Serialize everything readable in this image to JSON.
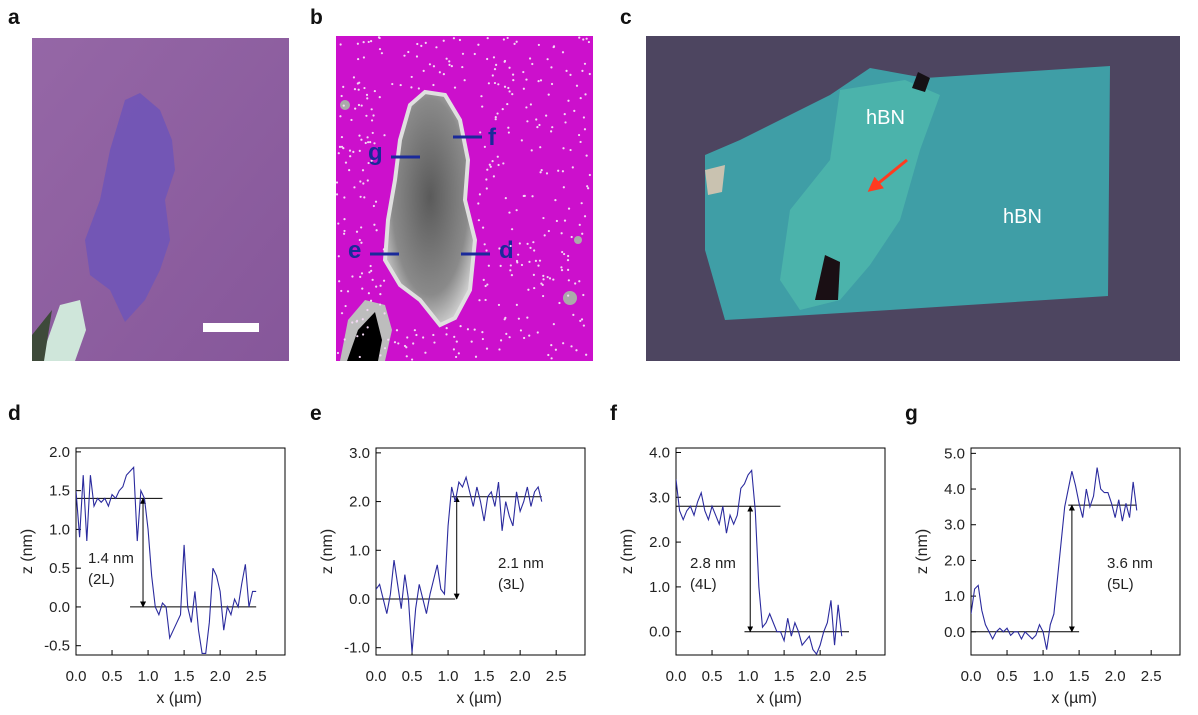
{
  "panel_labels": [
    "a",
    "b",
    "c"
  ],
  "image_b_labels": [
    "g",
    "f",
    "e",
    "d"
  ],
  "image_c_labels": [
    "hBN",
    "hBN"
  ],
  "chart_data": [
    {
      "type": "line",
      "title": "d",
      "xlabel": "x (µm)",
      "ylabel": "z (nm)",
      "color": "#2b2b9e",
      "xlim": [
        0,
        2.9
      ],
      "ylim": [
        -0.62,
        2.05
      ],
      "xticks": [
        {
          "value": 0,
          "label": "0.0"
        },
        0.5,
        {
          "value": 1,
          "label": "1.0"
        },
        1.5,
        {
          "value": 2,
          "label": "2.0"
        },
        2.5
      ],
      "yticks": [
        -0.5,
        {
          "value": 0,
          "label": "0.0"
        },
        0.5,
        {
          "value": 1,
          "label": "1.0"
        },
        1.5,
        {
          "value": 2,
          "label": "2.0"
        }
      ],
      "x": [
        0,
        0.05,
        0.1,
        0.15,
        0.2,
        0.25,
        0.3,
        0.35,
        0.4,
        0.45,
        0.5,
        0.55,
        0.6,
        0.65,
        0.7,
        0.75,
        0.8,
        0.85,
        0.9,
        0.95,
        1,
        1.05,
        1.1,
        1.15,
        1.2,
        1.25,
        1.3,
        1.35,
        1.4,
        1.45,
        1.5,
        1.55,
        1.6,
        1.65,
        1.7,
        1.75,
        1.8,
        1.85,
        1.9,
        1.95,
        2,
        2.05,
        2.1,
        2.15,
        2.2,
        2.25,
        2.3,
        2.35,
        2.4,
        2.45,
        2.5
      ],
      "values": [
        1.5,
        0.9,
        1.7,
        0.85,
        1.7,
        1.3,
        1.4,
        1.35,
        1.4,
        1.3,
        1.45,
        1.4,
        1.5,
        1.55,
        1.7,
        1.75,
        1.8,
        0.85,
        1.5,
        1.4,
        1.0,
        0.4,
        0,
        -0.1,
        0.05,
        0,
        -0.4,
        -0.3,
        -0.2,
        -0.1,
        0.8,
        0,
        -0.2,
        0.2,
        -0.3,
        -0.6,
        -0.6,
        -0.2,
        0.5,
        0.4,
        0.2,
        -0.3,
        0,
        -0.1,
        0.1,
        0,
        0.3,
        0.55,
        0,
        0.2,
        0.2
      ],
      "reference_lines": [
        {
          "y": 1.4,
          "x": [
            0,
            1.2
          ]
        },
        {
          "y": 0,
          "x": [
            0.75,
            2.5
          ]
        }
      ],
      "arrow": {
        "x": 0.93,
        "y": [
          0,
          1.4
        ]
      },
      "annotation": [
        "1.4 nm",
        "(2L)"
      ]
    },
    {
      "type": "line",
      "title": "e",
      "xlabel": "x (µm)",
      "ylabel": "z (nm)",
      "color": "#2b2b9e",
      "xlim": [
        0,
        2.9
      ],
      "ylim": [
        -1.15,
        3.1
      ],
      "xticks": [
        {
          "value": 0,
          "label": "0.0"
        },
        0.5,
        {
          "value": 1,
          "label": "1.0"
        },
        1.5,
        {
          "value": 2,
          "label": "2.0"
        },
        2.5
      ],
      "yticks": [
        {
          "value": -1,
          "label": "-1.0"
        },
        {
          "value": 0,
          "label": "0.0"
        },
        {
          "value": 1,
          "label": "1.0"
        },
        {
          "value": 2,
          "label": "2.0"
        },
        {
          "value": 3,
          "label": "3.0"
        }
      ],
      "x": [
        0,
        0.05,
        0.1,
        0.15,
        0.2,
        0.25,
        0.3,
        0.35,
        0.4,
        0.45,
        0.5,
        0.55,
        0.6,
        0.65,
        0.7,
        0.75,
        0.8,
        0.85,
        0.9,
        0.95,
        1,
        1.05,
        1.1,
        1.15,
        1.2,
        1.25,
        1.3,
        1.35,
        1.4,
        1.45,
        1.5,
        1.55,
        1.6,
        1.65,
        1.7,
        1.75,
        1.8,
        1.85,
        1.9,
        1.95,
        2,
        2.05,
        2.1,
        2.15,
        2.2,
        2.25,
        2.3
      ],
      "values": [
        0.2,
        0.3,
        0,
        -0.3,
        0.1,
        0.8,
        0.3,
        -0.2,
        0.5,
        0,
        -1.1,
        -0.2,
        0.3,
        0,
        -0.3,
        0.1,
        0.4,
        0.7,
        0.2,
        0.1,
        1.5,
        2.3,
        2.0,
        2.4,
        2.3,
        2.5,
        2.2,
        1.9,
        2.3,
        2.0,
        1.6,
        2.1,
        2.2,
        1.9,
        2.4,
        1.4,
        2.0,
        1.7,
        1.5,
        2.2,
        1.8,
        2.0,
        2.3,
        1.9,
        2.2,
        2.3,
        2.0
      ],
      "reference_lines": [
        {
          "y": 0,
          "x": [
            0,
            1.1
          ]
        },
        {
          "y": 2.1,
          "x": [
            1.05,
            2.3
          ]
        }
      ],
      "arrow": {
        "x": 1.12,
        "y": [
          0,
          2.1
        ]
      },
      "annotation": [
        "2.1 nm",
        "(3L)"
      ]
    },
    {
      "type": "line",
      "title": "f",
      "xlabel": "x (µm)",
      "ylabel": "z (nm)",
      "color": "#2b2b9e",
      "xlim": [
        0,
        2.9
      ],
      "ylim": [
        -0.52,
        4.1
      ],
      "xticks": [
        {
          "value": 0,
          "label": "0.0"
        },
        0.5,
        {
          "value": 1,
          "label": "1.0"
        },
        1.5,
        {
          "value": 2,
          "label": "2.0"
        },
        2.5
      ],
      "yticks": [
        {
          "value": 0,
          "label": "0.0"
        },
        {
          "value": 1,
          "label": "1.0"
        },
        {
          "value": 2,
          "label": "2.0"
        },
        {
          "value": 3,
          "label": "3.0"
        },
        {
          "value": 4,
          "label": "4.0"
        }
      ],
      "x": [
        0,
        0.05,
        0.1,
        0.15,
        0.2,
        0.25,
        0.3,
        0.35,
        0.4,
        0.45,
        0.5,
        0.55,
        0.6,
        0.65,
        0.7,
        0.75,
        0.8,
        0.85,
        0.9,
        0.95,
        1,
        1.05,
        1.1,
        1.15,
        1.2,
        1.25,
        1.3,
        1.35,
        1.4,
        1.45,
        1.5,
        1.55,
        1.6,
        1.65,
        1.7,
        1.75,
        1.8,
        1.85,
        1.9,
        1.95,
        2,
        2.05,
        2.1,
        2.15,
        2.2,
        2.25,
        2.3
      ],
      "values": [
        3.4,
        2.7,
        2.5,
        2.7,
        2.8,
        2.6,
        2.9,
        3.1,
        2.7,
        2.5,
        2.8,
        2.6,
        2.4,
        2.8,
        2.2,
        2.6,
        2.4,
        2.6,
        3.2,
        3.3,
        3.5,
        3.6,
        2.7,
        1.0,
        0.1,
        0.2,
        0.4,
        0.2,
        0,
        0,
        -0.2,
        0.3,
        -0.1,
        0.2,
        0,
        -0.3,
        -0.2,
        -0.1,
        -0.4,
        -0.5,
        -0.3,
        0,
        0.2,
        0.7,
        -0.3,
        0.6,
        -0.1
      ],
      "reference_lines": [
        {
          "y": 2.8,
          "x": [
            0,
            1.45
          ]
        },
        {
          "y": 0,
          "x": [
            0.95,
            2.4
          ]
        }
      ],
      "arrow": {
        "x": 1.03,
        "y": [
          0,
          2.8
        ]
      },
      "annotation": [
        "2.8 nm",
        "(4L)"
      ]
    },
    {
      "type": "line",
      "title": "g",
      "xlabel": "x (µm)",
      "ylabel": "z (nm)",
      "color": "#2b2b9e",
      "xlim": [
        0,
        2.9
      ],
      "ylim": [
        -0.65,
        5.15
      ],
      "xticks": [
        {
          "value": 0,
          "label": "0.0"
        },
        0.5,
        {
          "value": 1,
          "label": "1.0"
        },
        1.5,
        {
          "value": 2,
          "label": "2.0"
        },
        2.5
      ],
      "yticks": [
        {
          "value": 0,
          "label": "0.0"
        },
        {
          "value": 1,
          "label": "1.0"
        },
        {
          "value": 2,
          "label": "2.0"
        },
        {
          "value": 3,
          "label": "3.0"
        },
        {
          "value": 4,
          "label": "4.0"
        },
        {
          "value": 5,
          "label": "5.0"
        }
      ],
      "x": [
        0,
        0.05,
        0.1,
        0.15,
        0.2,
        0.25,
        0.3,
        0.35,
        0.4,
        0.45,
        0.5,
        0.55,
        0.6,
        0.65,
        0.7,
        0.75,
        0.8,
        0.85,
        0.9,
        0.95,
        1,
        1.05,
        1.1,
        1.15,
        1.2,
        1.25,
        1.3,
        1.35,
        1.4,
        1.45,
        1.5,
        1.55,
        1.6,
        1.65,
        1.7,
        1.75,
        1.8,
        1.85,
        1.9,
        1.95,
        2,
        2.05,
        2.1,
        2.15,
        2.2,
        2.25,
        2.3
      ],
      "values": [
        0.5,
        1.2,
        1.3,
        0.6,
        0.2,
        0,
        -0.2,
        0,
        0.1,
        0,
        0.1,
        -0.1,
        0,
        0,
        -0.2,
        0,
        -0.1,
        -0.2,
        -0.1,
        0.2,
        0,
        -0.5,
        0.2,
        0.5,
        1.5,
        2.5,
        3.5,
        4.0,
        4.5,
        4.1,
        3.6,
        3.2,
        4.0,
        3.5,
        3.8,
        4.6,
        4.0,
        3.9,
        3.9,
        3.6,
        3.2,
        3.7,
        3.1,
        3.6,
        3.2,
        4.2,
        3.4
      ],
      "reference_lines": [
        {
          "y": 0,
          "x": [
            0,
            1.5
          ]
        },
        {
          "y": 3.55,
          "x": [
            1.35,
            2.3
          ]
        }
      ],
      "arrow": {
        "x": 1.4,
        "y": [
          0,
          3.55
        ]
      },
      "annotation": [
        "3.6 nm",
        "(5L)"
      ]
    }
  ]
}
